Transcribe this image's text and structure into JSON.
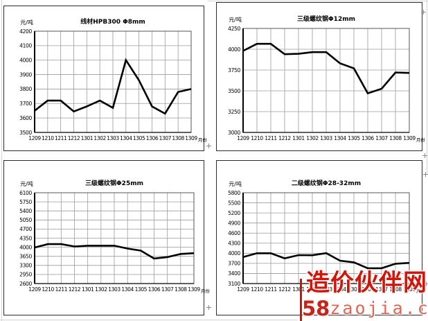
{
  "page": {
    "unit_label": "元/吨",
    "month_axis_label": "月份"
  },
  "watermark": {
    "site_name": "造价伙伴网",
    "domain_prefix": "58",
    "domain_rest": "zaojia.com",
    "name_color": "#d41408",
    "bar_color": "#cc1605",
    "prefix_color": "#c9231a",
    "rest_color": "#e06552"
  },
  "chart_data": [
    {
      "type": "line",
      "title": "线材HPB300 Φ8mm",
      "ylabel": "元/吨",
      "xlabel": "月份",
      "ylim": [
        3500,
        4200
      ],
      "ystep": 100,
      "grid": true,
      "legend": "none",
      "line_color": "#000000",
      "categories": [
        "1209",
        "1210",
        "1211",
        "1212",
        "1301",
        "1302",
        "1303",
        "1304",
        "1305",
        "1306",
        "1307",
        "1308",
        "1309"
      ],
      "values": [
        3650,
        3720,
        3720,
        3645,
        3680,
        3720,
        3670,
        4000,
        3860,
        3680,
        3630,
        3780,
        3800
      ]
    },
    {
      "type": "line",
      "title": "三级螺纹钢Φ12mm",
      "ylabel": "元/吨",
      "xlabel": "月份",
      "ylim": [
        3000,
        4250
      ],
      "ystep": 250,
      "grid": true,
      "legend": "none",
      "line_color": "#000000",
      "categories": [
        "1209",
        "1210",
        "1211",
        "1212",
        "1301",
        "1302",
        "1303",
        "1304",
        "1305",
        "1306",
        "1307",
        "1308",
        "1309"
      ],
      "values": [
        3980,
        4065,
        4065,
        3940,
        3945,
        3965,
        3965,
        3830,
        3770,
        3470,
        3525,
        3720,
        3715
      ]
    },
    {
      "type": "line",
      "title": "三级螺纹钢Φ25mm",
      "ylabel": "元/吨",
      "xlabel": "月份",
      "ylim": [
        2600,
        6100
      ],
      "ystep": 350,
      "grid": true,
      "legend": "none",
      "line_color": "#000000",
      "categories": [
        "1209",
        "1210",
        "1211",
        "1212",
        "1301",
        "1302",
        "1303",
        "1304",
        "1305",
        "1306",
        "1307",
        "1308",
        "1309"
      ],
      "values": [
        3990,
        4120,
        4120,
        4030,
        4060,
        4060,
        4060,
        3950,
        3870,
        3565,
        3620,
        3740,
        3770
      ]
    },
    {
      "type": "line",
      "title": "二级螺纹钢Φ28-32mm",
      "ylabel": "元/吨",
      "xlabel": "月份",
      "ylim": [
        3100,
        5800
      ],
      "ystep": 300,
      "grid": true,
      "legend": "none",
      "line_color": "#000000",
      "categories": [
        "1209",
        "1210",
        "1211",
        "1212",
        "1301",
        "1302",
        "1303",
        "1304",
        "1305",
        "1306",
        "1307",
        "1308",
        "1309"
      ],
      "values": [
        3890,
        4000,
        4000,
        3850,
        3945,
        3940,
        4005,
        3780,
        3730,
        3555,
        3555,
        3690,
        3715
      ]
    }
  ]
}
